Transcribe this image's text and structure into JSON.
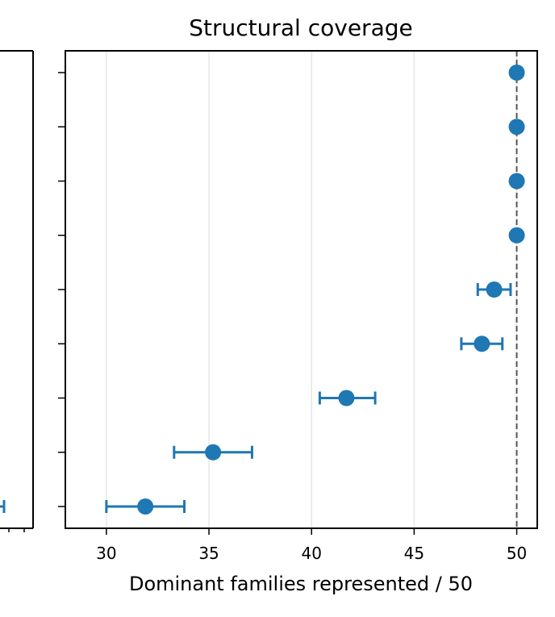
{
  "chart_data": {
    "type": "scatter",
    "title": "Structural coverage",
    "xlabel": "Dominant families represented / 50",
    "ylabel": "",
    "xlim": [
      28,
      51
    ],
    "x_ticks": [
      30,
      35,
      40,
      45,
      50
    ],
    "grid": "vertical",
    "reference_line": {
      "x": 50,
      "style": "dashed"
    },
    "series": [
      {
        "color": "#1f77b4",
        "points": [
          {
            "x": 50.0,
            "err_low": 0.0,
            "err_high": 0.0
          },
          {
            "x": 50.0,
            "err_low": 0.0,
            "err_high": 0.0
          },
          {
            "x": 50.0,
            "err_low": 0.0,
            "err_high": 0.0
          },
          {
            "x": 50.0,
            "err_low": 0.0,
            "err_high": 0.0
          },
          {
            "x": 48.9,
            "err_low": 0.8,
            "err_high": 0.8
          },
          {
            "x": 48.3,
            "err_low": 1.0,
            "err_high": 1.0
          },
          {
            "x": 41.7,
            "err_low": 1.3,
            "err_high": 1.4
          },
          {
            "x": 35.2,
            "err_low": 1.9,
            "err_high": 1.9
          },
          {
            "x": 31.9,
            "err_low": 1.9,
            "err_high": 1.9
          }
        ]
      }
    ]
  }
}
